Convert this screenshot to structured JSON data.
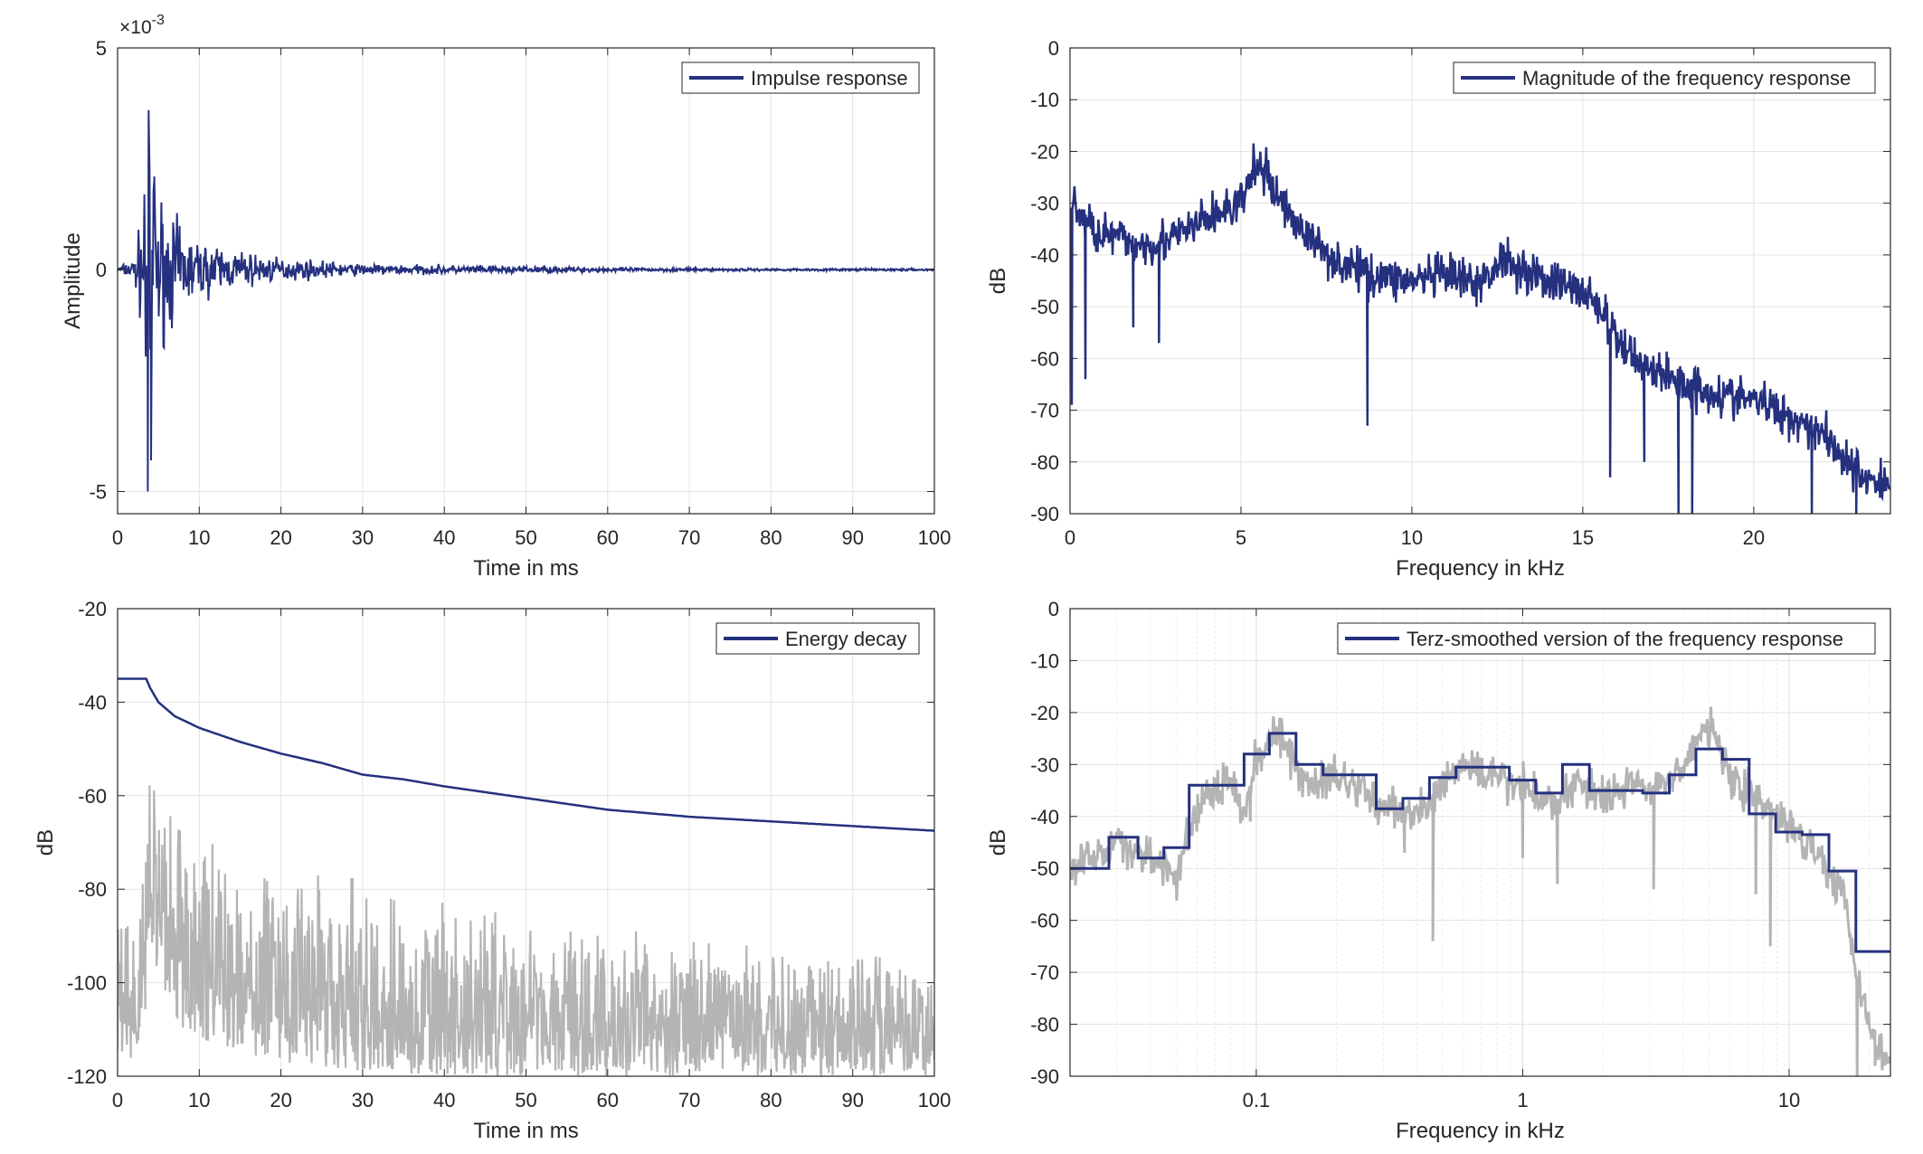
{
  "colors": {
    "series": "#25307f",
    "raw": "#b4b4b4",
    "grid": "#e3e3e3",
    "axis": "#262626"
  },
  "chart_data": [
    {
      "type": "line",
      "xlabel": "Time in ms",
      "ylabel": "Amplitude",
      "xlim": [
        0,
        100
      ],
      "ylim": [
        -5.5,
        5
      ],
      "xticks": [
        0,
        10,
        20,
        30,
        40,
        50,
        60,
        70,
        80,
        90,
        100
      ],
      "yticks": [
        -5,
        0,
        5
      ],
      "exponent_label": "×10",
      "exponent_power": "-3",
      "grid": true,
      "legend_position": "top-right",
      "series": [
        {
          "name": "Impulse response",
          "kind": "impulse",
          "x": [
            0,
            2,
            3.0,
            3.4,
            3.8,
            4.0,
            4.2,
            4.5,
            5,
            6,
            7,
            8,
            9,
            10,
            12,
            14,
            16,
            18,
            20,
            25,
            30,
            40,
            50,
            60,
            70,
            80,
            90,
            100
          ],
          "envelope": [
            0.05,
            0.2,
            1.0,
            3.2,
            3.6,
            2.4,
            2.0,
            1.8,
            1.4,
            1.0,
            0.9,
            0.8,
            0.6,
            0.5,
            0.45,
            0.35,
            0.3,
            0.25,
            0.2,
            0.15,
            0.1,
            0.08,
            0.06,
            0.04,
            0.03,
            0.02,
            0.02,
            0.02
          ],
          "peaks": [
            {
              "x": 3.8,
              "y": 3.6
            },
            {
              "x": 3.7,
              "y": -5.0
            },
            {
              "x": 4.1,
              "y": -4.3
            },
            {
              "x": 4.5,
              "y": 2.1
            },
            {
              "x": 4.0,
              "y": -1.8
            }
          ]
        }
      ]
    },
    {
      "type": "line",
      "xlabel": "Frequency in kHz",
      "ylabel": "dB",
      "xlim": [
        0,
        24
      ],
      "ylim": [
        -90,
        0
      ],
      "xticks": [
        0,
        5,
        10,
        15,
        20
      ],
      "yticks": [
        -90,
        -80,
        -70,
        -60,
        -50,
        -40,
        -30,
        -20,
        -10,
        0
      ],
      "grid": true,
      "legend_position": "top-right",
      "series": [
        {
          "name": "Magnitude of the frequency response",
          "x": [
            0,
            0.1,
            0.3,
            1,
            2,
            3,
            4,
            5,
            5.5,
            6,
            7,
            8,
            9,
            10,
            11,
            12,
            12.7,
            13,
            14,
            15,
            15.5,
            16,
            17,
            18,
            19,
            20,
            21,
            22,
            23,
            24
          ],
          "y": [
            -35,
            -28,
            -33,
            -36,
            -38,
            -37,
            -33,
            -30,
            -22,
            -28,
            -37,
            -42,
            -44,
            -45,
            -44,
            -46,
            -40,
            -42,
            -45,
            -47,
            -50,
            -57,
            -62,
            -65,
            -67,
            -68,
            -71,
            -74,
            -82,
            -85
          ],
          "dips": [
            {
              "x": 0.05,
              "y": -69
            },
            {
              "x": 0.45,
              "y": -64
            },
            {
              "x": 1.85,
              "y": -54
            },
            {
              "x": 2.6,
              "y": -57
            },
            {
              "x": 8.7,
              "y": -73
            },
            {
              "x": 15.8,
              "y": -83
            },
            {
              "x": 16.8,
              "y": -80
            },
            {
              "x": 17.8,
              "y": -90
            },
            {
              "x": 18.2,
              "y": -90
            },
            {
              "x": 21.7,
              "y": -90
            },
            {
              "x": 23.0,
              "y": -90
            }
          ]
        }
      ]
    },
    {
      "type": "line",
      "xlabel": "Time in ms",
      "ylabel": "dB",
      "xlim": [
        0,
        100
      ],
      "ylim": [
        -120,
        -20
      ],
      "xticks": [
        0,
        10,
        20,
        30,
        40,
        50,
        60,
        70,
        80,
        90,
        100
      ],
      "yticks": [
        -120,
        -100,
        -80,
        -60,
        -40,
        -20
      ],
      "grid": true,
      "legend_position": "top-right",
      "series": [
        {
          "name": "Energy decay",
          "x": [
            0,
            2,
            3.5,
            4,
            5,
            7,
            10,
            15,
            20,
            25,
            30,
            35,
            40,
            50,
            60,
            70,
            80,
            90,
            100
          ],
          "y": [
            -35,
            -35,
            -35,
            -37,
            -40,
            -43,
            -45.5,
            -48.5,
            -51,
            -53,
            -55.5,
            -56.5,
            -58,
            -60.5,
            -63,
            -64.5,
            -65.5,
            -66.5,
            -67.5
          ]
        },
        {
          "kind": "raw",
          "x": [
            0,
            3,
            4,
            5,
            8,
            10,
            15,
            20,
            30,
            40,
            50,
            60,
            70,
            80,
            90,
            100
          ],
          "upper": [
            -85,
            -80,
            -46,
            -55,
            -65,
            -68,
            -72,
            -74,
            -78,
            -82,
            -86,
            -88,
            -90,
            -92,
            -93,
            -95
          ],
          "lower": [
            -118,
            -118,
            -95,
            -100,
            -110,
            -112,
            -115,
            -117,
            -119,
            -120,
            -120,
            -120,
            -120,
            -120,
            -120,
            -120
          ]
        }
      ]
    },
    {
      "type": "line",
      "xlabel": "Frequency in kHz",
      "ylabel": "dB",
      "xscale": "log",
      "xlim": [
        0.02,
        24
      ],
      "ylim": [
        -90,
        0
      ],
      "xticks": [
        0.1,
        1,
        10
      ],
      "xticklabels": [
        "0.1",
        "1",
        "10"
      ],
      "yticks": [
        -90,
        -80,
        -70,
        -60,
        -50,
        -40,
        -30,
        -20,
        -10,
        0
      ],
      "grid": true,
      "legend_position": "top-right",
      "series": [
        {
          "name": "Terz-smoothed version of the frequency response",
          "kind": "step",
          "edges": [
            0.02,
            0.028,
            0.036,
            0.045,
            0.056,
            0.071,
            0.09,
            0.112,
            0.141,
            0.178,
            0.224,
            0.282,
            0.355,
            0.447,
            0.562,
            0.708,
            0.891,
            1.12,
            1.41,
            1.78,
            2.24,
            2.82,
            3.55,
            4.47,
            5.62,
            7.08,
            8.91,
            11.2,
            14.1,
            17.8,
            24
          ],
          "values": [
            -50,
            -44,
            -48,
            -46,
            -34,
            -34,
            -28,
            -24,
            -30,
            -32,
            -32,
            -38.5,
            -36.5,
            -32.5,
            -30.5,
            -30.5,
            -33,
            -35.5,
            -30,
            -35,
            -35,
            -35.5,
            -32,
            -27,
            -29,
            -39.5,
            -43,
            -43.5,
            -50.5,
            -66
          ]
        },
        {
          "kind": "raw",
          "x": [
            0.02,
            0.03,
            0.04,
            0.05,
            0.06,
            0.08,
            0.09,
            0.1,
            0.12,
            0.14,
            0.16,
            0.2,
            0.25,
            0.3,
            0.4,
            0.5,
            0.6,
            0.8,
            1,
            1.3,
            1.6,
            2,
            2.5,
            3,
            4,
            5,
            6,
            8,
            10,
            12,
            14,
            16,
            18,
            20,
            22,
            24
          ],
          "y": [
            -50,
            -45,
            -48,
            -52,
            -38,
            -33,
            -40,
            -28,
            -24,
            -30,
            -34,
            -32,
            -35,
            -38,
            -40,
            -34,
            -30,
            -33,
            -34,
            -38,
            -33,
            -36,
            -34,
            -35,
            -30,
            -22,
            -32,
            -38,
            -42,
            -45,
            -50,
            -55,
            -70,
            -80,
            -85,
            -88
          ],
          "dips": [
            {
              "x": 0.095,
              "y": -41
            },
            {
              "x": 0.36,
              "y": -47
            },
            {
              "x": 0.46,
              "y": -64
            },
            {
              "x": 1.0,
              "y": -48
            },
            {
              "x": 1.35,
              "y": -53
            },
            {
              "x": 3.1,
              "y": -54
            },
            {
              "x": 7.5,
              "y": -55
            },
            {
              "x": 8.5,
              "y": -65
            },
            {
              "x": 18,
              "y": -90
            },
            {
              "x": 21,
              "y": -88
            }
          ]
        }
      ]
    }
  ]
}
